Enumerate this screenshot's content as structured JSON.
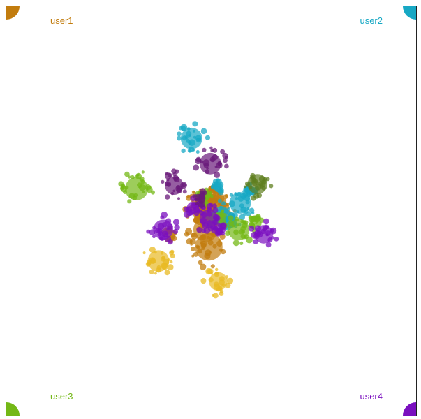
{
  "users": {
    "user1": {
      "label": "user1",
      "color": "#c27c0e"
    },
    "user2": {
      "label": "user2",
      "color": "#17a8c4"
    },
    "user3": {
      "label": "user3",
      "color": "#74b816"
    },
    "user4": {
      "label": "user4",
      "color": "#7a0fbf"
    }
  },
  "chart_data": {
    "type": "scatter",
    "title": "",
    "xlabel": "",
    "ylabel": "",
    "grid": false,
    "legend": "corners",
    "series": [
      {
        "color": "#c27c0e",
        "points": [
          {
            "x": 0.05,
            "y": 0.1,
            "r": 1
          },
          {
            "x": -0.15,
            "y": 0.25,
            "r": 0.8
          },
          {
            "x": 0.15,
            "y": 0.45,
            "r": 0.7
          },
          {
            "x": -0.1,
            "y": -0.55,
            "r": 0.8
          },
          {
            "x": 0.0,
            "y": -1.1,
            "r": 0.9
          },
          {
            "x": -1.2,
            "y": -0.7,
            "r": 0.3
          },
          {
            "x": -0.25,
            "y": -0.05,
            "r": 0.5
          }
        ]
      },
      {
        "color": "#17a8c4",
        "points": [
          {
            "x": -0.55,
            "y": 2.35,
            "r": 0.7
          },
          {
            "x": 1.0,
            "y": 0.3,
            "r": 0.7
          },
          {
            "x": 0.4,
            "y": -0.1,
            "r": 0.6
          },
          {
            "x": 0.7,
            "y": -0.3,
            "r": 0.4
          },
          {
            "x": 1.3,
            "y": 0.7,
            "r": 0.3
          },
          {
            "x": 0.3,
            "y": 0.8,
            "r": 0.3
          }
        ]
      },
      {
        "color": "#74b816",
        "points": [
          {
            "x": -2.3,
            "y": 0.75,
            "r": 0.75
          },
          {
            "x": 0.95,
            "y": -0.55,
            "r": 0.7
          },
          {
            "x": 0.25,
            "y": -0.2,
            "r": 0.4
          },
          {
            "x": 1.45,
            "y": -0.25,
            "r": 0.3
          },
          {
            "x": -0.1,
            "y": 0.5,
            "r": 0.3
          }
        ]
      },
      {
        "color": "#7a0fbf",
        "points": [
          {
            "x": -1.45,
            "y": -0.55,
            "r": 0.65
          },
          {
            "x": 1.75,
            "y": -0.7,
            "r": 0.6
          },
          {
            "x": 0.0,
            "y": -0.2,
            "r": 0.6
          },
          {
            "x": -0.5,
            "y": 0.15,
            "r": 0.4
          },
          {
            "x": 0.3,
            "y": -0.5,
            "r": 0.3
          }
        ]
      },
      {
        "color": "#6a1a7a",
        "points": [
          {
            "x": 0.05,
            "y": 1.55,
            "r": 0.7
          },
          {
            "x": -1.1,
            "y": 0.85,
            "r": 0.6
          },
          {
            "x": -0.25,
            "y": 0.45,
            "r": 0.3
          }
        ]
      },
      {
        "color": "#5f7f1f",
        "points": [
          {
            "x": 1.55,
            "y": 0.9,
            "r": 0.65
          }
        ]
      },
      {
        "color": "#e8b923",
        "points": [
          {
            "x": -1.6,
            "y": -1.55,
            "r": 0.7
          },
          {
            "x": 0.3,
            "y": -2.2,
            "r": 0.6
          }
        ]
      }
    ]
  }
}
